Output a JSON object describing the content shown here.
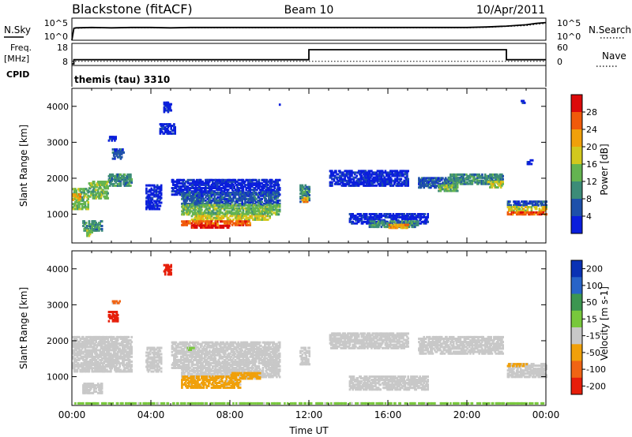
{
  "header": {
    "station": "Blackstone (fitACF)",
    "beam": "Beam 10",
    "date": "10/Apr/2011"
  },
  "chart_data": [
    {
      "type": "line",
      "panel": "noise",
      "left_label": "N.Sky",
      "right_label": "N.Search",
      "left_ticks": [
        "10^5",
        "10^0"
      ],
      "right_ticks": [
        "10^5",
        "10^0"
      ],
      "x": [
        0,
        0.1,
        0.2,
        1,
        2,
        3,
        4,
        5,
        6,
        7,
        8,
        9,
        10,
        11,
        12,
        13,
        14,
        15,
        16,
        17,
        18,
        19,
        20,
        21,
        22,
        23,
        23.5,
        24
      ],
      "n_sky": [
        0.0,
        2.7,
        2.8,
        2.9,
        2.8,
        2.9,
        2.9,
        2.8,
        2.9,
        2.9,
        2.9,
        2.9,
        2.9,
        2.9,
        2.9,
        2.9,
        2.9,
        2.9,
        2.9,
        2.9,
        2.9,
        2.9,
        2.9,
        3.0,
        3.2,
        3.5,
        3.8,
        4.0
      ],
      "n_search": [
        0.0,
        2.6,
        2.7,
        2.8,
        2.8,
        2.8,
        2.8,
        2.8,
        2.8,
        2.8,
        2.8,
        2.8,
        2.8,
        2.8,
        2.8,
        2.8,
        2.8,
        2.8,
        2.8,
        2.8,
        2.8,
        2.8,
        2.8,
        2.9,
        3.1,
        3.3,
        3.6,
        3.8
      ]
    },
    {
      "type": "line",
      "panel": "frequency",
      "left_label": "Freq.",
      "left_unit": "[MHz]",
      "right_label": "Nave",
      "left_ticks": [
        "18",
        "8"
      ],
      "right_ticks": [
        "60",
        "0"
      ],
      "freq_steps": [
        [
          0,
          0.1,
          8.0
        ],
        [
          0.1,
          12.0,
          10.2
        ],
        [
          12.0,
          22.0,
          15.5
        ],
        [
          22.0,
          24.0,
          10.2
        ]
      ],
      "nave_level": 8
    },
    {
      "type": "table",
      "panel": "cpid",
      "label": "CPID",
      "text": "themis (tau) 3310"
    },
    {
      "type": "heatmap",
      "panel": "power",
      "ylabel": "Slant Range [km]",
      "colorbar_label": "Power [dB]",
      "colorbar_ticks": [
        "4",
        "8",
        "12",
        "16",
        "20",
        "24",
        "28"
      ],
      "colors": [
        "#0a1edc",
        "#1e50aa",
        "#3c8c78",
        "#64b450",
        "#d2c81e",
        "#f0a00a",
        "#f05a0a",
        "#dc0a0a"
      ],
      "ylim": [
        200,
        4500
      ],
      "yticks": [
        "1000",
        "2000",
        "3000",
        "4000"
      ],
      "regions": [
        [
          0.0,
          0.8,
          1100,
          1700,
          3
        ],
        [
          0.8,
          1.8,
          1400,
          1900,
          3
        ],
        [
          1.8,
          3.0,
          1750,
          2100,
          2
        ],
        [
          0.0,
          0.4,
          1350,
          1550,
          5
        ],
        [
          0.5,
          1.5,
          500,
          800,
          2
        ],
        [
          0.7,
          1.0,
          350,
          550,
          3
        ],
        [
          2.0,
          2.6,
          2500,
          2800,
          1
        ],
        [
          1.8,
          2.2,
          3000,
          3150,
          0
        ],
        [
          3.7,
          4.5,
          1100,
          1800,
          0
        ],
        [
          4.4,
          5.2,
          3200,
          3500,
          0
        ],
        [
          4.6,
          5.0,
          3800,
          4100,
          0
        ],
        [
          5.0,
          10.5,
          1500,
          1950,
          0
        ],
        [
          5.5,
          10.5,
          1200,
          1600,
          1
        ],
        [
          5.5,
          10.5,
          950,
          1250,
          3
        ],
        [
          6.0,
          10.0,
          800,
          950,
          4
        ],
        [
          5.5,
          9.0,
          650,
          800,
          6
        ],
        [
          6.0,
          8.0,
          580,
          680,
          7
        ],
        [
          11.5,
          12.0,
          1300,
          1800,
          2
        ],
        [
          11.6,
          11.9,
          1300,
          1450,
          5
        ],
        [
          13.0,
          17.0,
          1750,
          2200,
          0
        ],
        [
          14.0,
          18.0,
          700,
          1000,
          0
        ],
        [
          15.0,
          17.5,
          600,
          800,
          2
        ],
        [
          16.0,
          17.0,
          580,
          700,
          5
        ],
        [
          17.5,
          19.5,
          1700,
          2000,
          1
        ],
        [
          19.0,
          21.8,
          1800,
          2100,
          2
        ],
        [
          21.0,
          21.8,
          1700,
          1900,
          4
        ],
        [
          18.5,
          19.5,
          1600,
          1800,
          3
        ],
        [
          22.0,
          24.0,
          1200,
          1350,
          1
        ],
        [
          22.0,
          24.0,
          1050,
          1200,
          4
        ],
        [
          22.0,
          24.0,
          950,
          1050,
          6
        ],
        [
          23.0,
          23.3,
          2350,
          2500,
          0
        ],
        [
          22.7,
          22.9,
          4050,
          4150,
          0
        ],
        [
          10.4,
          10.5,
          4000,
          4100,
          0
        ]
      ]
    },
    {
      "type": "heatmap",
      "panel": "velocity",
      "ylabel": "Slant Range [km]",
      "colorbar_label": "Velocity [m s-1]",
      "colorbar_ticks": [
        "200",
        "100",
        "50",
        "15",
        "-15",
        "-50",
        "-100",
        "-200"
      ],
      "colors": [
        "#0a32b4",
        "#2864c8",
        "#3c9650",
        "#78c83c",
        "#c8c8c8",
        "#f0a00a",
        "#f06414",
        "#e61e0a"
      ],
      "ylim": [
        200,
        4500
      ],
      "yticks": [
        "1000",
        "2000",
        "3000",
        "4000"
      ],
      "xticks": [
        "00:00",
        "04:00",
        "08:00",
        "12:00",
        "16:00",
        "20:00",
        "00:00"
      ],
      "xlabel": "Time UT",
      "regions": [
        [
          0.0,
          3.0,
          1100,
          2100,
          4
        ],
        [
          0.5,
          1.5,
          500,
          800,
          4
        ],
        [
          1.8,
          2.3,
          2500,
          2800,
          7
        ],
        [
          2.0,
          2.4,
          3000,
          3100,
          6
        ],
        [
          3.7,
          4.5,
          1100,
          1800,
          4
        ],
        [
          4.6,
          5.0,
          3800,
          4100,
          7
        ],
        [
          5.0,
          10.5,
          1200,
          1950,
          4
        ],
        [
          5.5,
          10.5,
          950,
          1200,
          4
        ],
        [
          5.5,
          8.5,
          650,
          1000,
          5
        ],
        [
          8.0,
          9.5,
          900,
          1100,
          5
        ],
        [
          11.5,
          12.0,
          1300,
          1800,
          4
        ],
        [
          13.0,
          17.0,
          1750,
          2200,
          4
        ],
        [
          14.0,
          18.0,
          600,
          1000,
          4
        ],
        [
          17.5,
          21.8,
          1600,
          2100,
          4
        ],
        [
          22.0,
          24.0,
          950,
          1350,
          4
        ],
        [
          22.0,
          23.0,
          1250,
          1350,
          5
        ],
        [
          5.8,
          6.2,
          1700,
          1800,
          3
        ],
        [
          0.0,
          24.0,
          210,
          260,
          3
        ]
      ]
    }
  ]
}
